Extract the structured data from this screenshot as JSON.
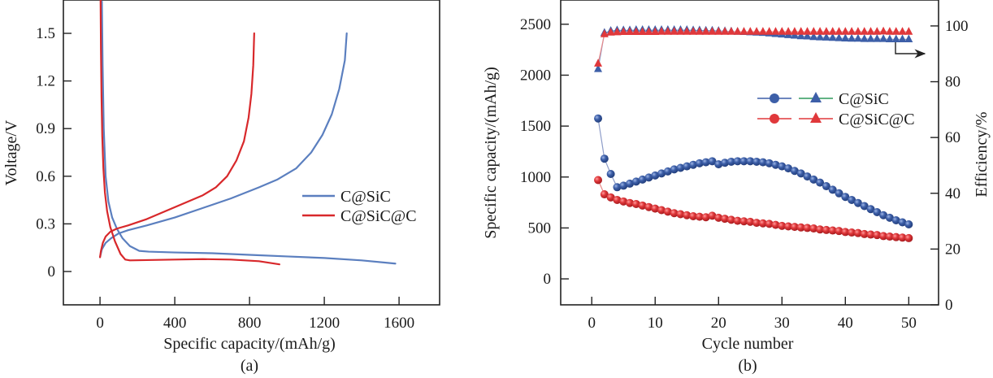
{
  "figure": {
    "panels": [
      "(a)",
      "(b)"
    ]
  },
  "chart_data": [
    {
      "type": "line",
      "panel_label": "(a)",
      "title": "",
      "xlabel": "Specific capacity/(mAh/g)",
      "ylabel": "Voltage/V",
      "xlim": [
        -196,
        1817
      ],
      "ylim": [
        -0.21,
        1.71
      ],
      "xticks": [
        0,
        400,
        800,
        1200,
        1600
      ],
      "xtick_labels": [
        "0",
        "400",
        "800",
        "1200",
        "1600"
      ],
      "yticks": [
        0,
        0.3,
        0.6,
        0.9,
        1.2,
        1.5
      ],
      "ytick_labels": [
        "0",
        "0.3",
        "0.6",
        "0.9",
        "1.2",
        "1.5"
      ],
      "grid": false,
      "legend_position": "center-right",
      "series": [
        {
          "name": "C@SiC",
          "color": "#5b7fbf",
          "legend_label": "C@SiC",
          "segments": [
            {
              "kind": "discharge",
              "x": [
                10,
                14,
                20,
                30,
                45,
                65,
                90,
                120,
                160,
                210,
                260,
                400,
                600,
                800,
                1000,
                1200,
                1400,
                1580
              ],
              "y": [
                1.7,
                1.3,
                0.9,
                0.6,
                0.44,
                0.34,
                0.27,
                0.21,
                0.16,
                0.13,
                0.125,
                0.12,
                0.115,
                0.105,
                0.095,
                0.085,
                0.07,
                0.05
              ]
            },
            {
              "kind": "charge",
              "x": [
                0,
                10,
                30,
                60,
                100,
                150,
                250,
                400,
                550,
                700,
                850,
                950,
                1050,
                1130,
                1190,
                1240,
                1280,
                1310,
                1320
              ],
              "y": [
                0.09,
                0.14,
                0.18,
                0.21,
                0.24,
                0.26,
                0.29,
                0.34,
                0.4,
                0.46,
                0.53,
                0.58,
                0.65,
                0.75,
                0.86,
                0.99,
                1.15,
                1.33,
                1.5
              ]
            }
          ]
        },
        {
          "name": "C@SiC@C",
          "color": "#d8282b",
          "legend_label": "C@SiC@C",
          "segments": [
            {
              "kind": "discharge",
              "x": [
                3,
                5,
                8,
                12,
                18,
                26,
                38,
                55,
                80,
                110,
                135,
                160,
                250,
                400,
                550,
                700,
                850,
                960
              ],
              "y": [
                1.72,
                1.4,
                1.1,
                0.85,
                0.65,
                0.5,
                0.38,
                0.28,
                0.19,
                0.11,
                0.075,
                0.07,
                0.072,
                0.075,
                0.078,
                0.075,
                0.065,
                0.045
              ]
            },
            {
              "kind": "charge",
              "x": [
                0,
                5,
                15,
                30,
                55,
                90,
                150,
                250,
                350,
                450,
                550,
                620,
                680,
                730,
                770,
                795,
                810,
                820,
                825
              ],
              "y": [
                0.09,
                0.13,
                0.18,
                0.22,
                0.25,
                0.27,
                0.29,
                0.33,
                0.38,
                0.43,
                0.48,
                0.53,
                0.6,
                0.7,
                0.82,
                0.97,
                1.12,
                1.3,
                1.5
              ]
            }
          ]
        }
      ]
    },
    {
      "type": "scatter",
      "panel_label": "(b)",
      "title": "",
      "xlabel": "Cycle number",
      "ylabel": "Specific capacity/(mAh/g)",
      "ylabel_right": "Efficiency/%",
      "xlim": [
        -4.9,
        54.7
      ],
      "ylim": [
        -255,
        2738
      ],
      "ylim_right": [
        0,
        109.3
      ],
      "xticks": [
        0,
        10,
        20,
        30,
        40,
        50
      ],
      "xtick_labels": [
        "0",
        "10",
        "20",
        "30",
        "40",
        "50"
      ],
      "yticks": [
        0,
        500,
        1000,
        1500,
        2000,
        2500
      ],
      "ytick_labels": [
        "0",
        "500",
        "1000",
        "1500",
        "2000",
        "2500"
      ],
      "yticks_right": [
        0,
        20,
        40,
        60,
        80,
        100
      ],
      "ytick_labels_right": [
        "0",
        "20",
        "40",
        "60",
        "80",
        "100"
      ],
      "grid": false,
      "legend_position": "top-right",
      "annotation": "arrow pointing to right axis (efficiency)",
      "series": [
        {
          "name": "C@SiC capacity",
          "legend_label": "C@SiC",
          "marker": "circle",
          "axis": "left",
          "color": "#3d5fa8",
          "x": [
            1,
            2,
            3,
            4,
            5,
            6,
            7,
            8,
            9,
            10,
            11,
            12,
            13,
            14,
            15,
            16,
            17,
            18,
            19,
            20,
            21,
            22,
            23,
            24,
            25,
            26,
            27,
            28,
            29,
            30,
            31,
            32,
            33,
            34,
            35,
            36,
            37,
            38,
            39,
            40,
            41,
            42,
            43,
            44,
            45,
            46,
            47,
            48,
            49,
            50
          ],
          "y": [
            1575,
            1180,
            1030,
            900,
            915,
            935,
            955,
            975,
            995,
            1015,
            1035,
            1055,
            1075,
            1090,
            1105,
            1120,
            1135,
            1145,
            1155,
            1125,
            1140,
            1150,
            1155,
            1155,
            1155,
            1150,
            1145,
            1135,
            1120,
            1105,
            1085,
            1060,
            1035,
            1005,
            975,
            945,
            910,
            875,
            840,
            805,
            775,
            745,
            715,
            685,
            655,
            625,
            600,
            575,
            555,
            535
          ]
        },
        {
          "name": "C@SiC@C capacity",
          "legend_label": "C@SiC@C",
          "marker": "circle",
          "axis": "left",
          "color": "#e0383b",
          "x": [
            1,
            2,
            3,
            4,
            5,
            6,
            7,
            8,
            9,
            10,
            11,
            12,
            13,
            14,
            15,
            16,
            17,
            18,
            19,
            20,
            21,
            22,
            23,
            24,
            25,
            26,
            27,
            28,
            29,
            30,
            31,
            32,
            33,
            34,
            35,
            36,
            37,
            38,
            39,
            40,
            41,
            42,
            43,
            44,
            45,
            46,
            47,
            48,
            49,
            50
          ],
          "y": [
            970,
            830,
            800,
            775,
            760,
            745,
            735,
            720,
            705,
            690,
            675,
            660,
            645,
            635,
            625,
            615,
            610,
            605,
            620,
            600,
            590,
            580,
            570,
            565,
            560,
            550,
            545,
            540,
            530,
            520,
            515,
            510,
            505,
            500,
            495,
            485,
            480,
            475,
            470,
            460,
            455,
            450,
            440,
            435,
            430,
            420,
            415,
            410,
            405,
            400
          ]
        },
        {
          "name": "C@SiC efficiency",
          "legend_label": "C@SiC",
          "marker": "triangle",
          "axis": "right",
          "color": "#3d5fa8",
          "x": [
            1,
            2,
            3,
            4,
            5,
            6,
            7,
            8,
            9,
            10,
            11,
            12,
            13,
            14,
            15,
            16,
            17,
            18,
            19,
            20,
            21,
            22,
            23,
            24,
            25,
            26,
            27,
            28,
            29,
            30,
            31,
            32,
            33,
            34,
            35,
            36,
            37,
            38,
            39,
            40,
            41,
            42,
            43,
            44,
            45,
            46,
            47,
            48,
            49,
            50
          ],
          "y": [
            84.5,
            97.5,
            98.2,
            98.4,
            98.4,
            98.4,
            98.5,
            98.5,
            98.5,
            98.5,
            98.5,
            98.5,
            98.5,
            98.5,
            98.5,
            98.4,
            98.4,
            98.3,
            98.3,
            98.2,
            98.1,
            98.0,
            97.9,
            97.8,
            97.7,
            97.6,
            97.5,
            97.3,
            97.1,
            96.9,
            96.7,
            96.5,
            96.3,
            96.2,
            96.0,
            95.9,
            95.8,
            95.7,
            95.6,
            95.5,
            95.4,
            95.4,
            95.3,
            95.3,
            95.3,
            95.3,
            95.2,
            95.2,
            95.2,
            95.2
          ]
        },
        {
          "name": "C@SiC@C efficiency",
          "legend_label": "C@SiC@C",
          "marker": "triangle",
          "axis": "right",
          "color": "#e0383b",
          "x": [
            1,
            2,
            3,
            4,
            5,
            6,
            7,
            8,
            9,
            10,
            11,
            12,
            13,
            14,
            15,
            16,
            17,
            18,
            19,
            20,
            21,
            22,
            23,
            24,
            25,
            26,
            27,
            28,
            29,
            30,
            31,
            32,
            33,
            34,
            35,
            36,
            37,
            38,
            39,
            40,
            41,
            42,
            43,
            44,
            45,
            46,
            47,
            48,
            49,
            50
          ],
          "y": [
            86.5,
            97.0,
            97.6,
            97.7,
            97.8,
            97.8,
            97.8,
            97.8,
            97.8,
            97.8,
            97.9,
            97.9,
            97.9,
            97.9,
            97.9,
            97.9,
            97.9,
            97.9,
            97.9,
            97.9,
            97.9,
            97.9,
            97.9,
            97.9,
            97.9,
            97.9,
            97.9,
            97.9,
            97.9,
            97.9,
            97.9,
            97.9,
            97.9,
            97.9,
            97.9,
            97.9,
            97.9,
            97.9,
            97.9,
            97.9,
            97.9,
            97.9,
            97.9,
            97.9,
            97.9,
            98.0,
            97.9,
            97.9,
            97.9,
            97.9
          ]
        }
      ],
      "legend": [
        {
          "label": "C@SiC",
          "circle_color": "#3d5fa8",
          "circle_line_color": "#3d5fa8",
          "triangle_color": "#3d5fa8",
          "triangle_line_color": "#2e9a5c"
        },
        {
          "label": "C@SiC@C",
          "circle_color": "#e0383b",
          "circle_line_color": "#e0383b",
          "triangle_color": "#e0383b",
          "triangle_line_color": "#e0383b"
        }
      ]
    }
  ]
}
